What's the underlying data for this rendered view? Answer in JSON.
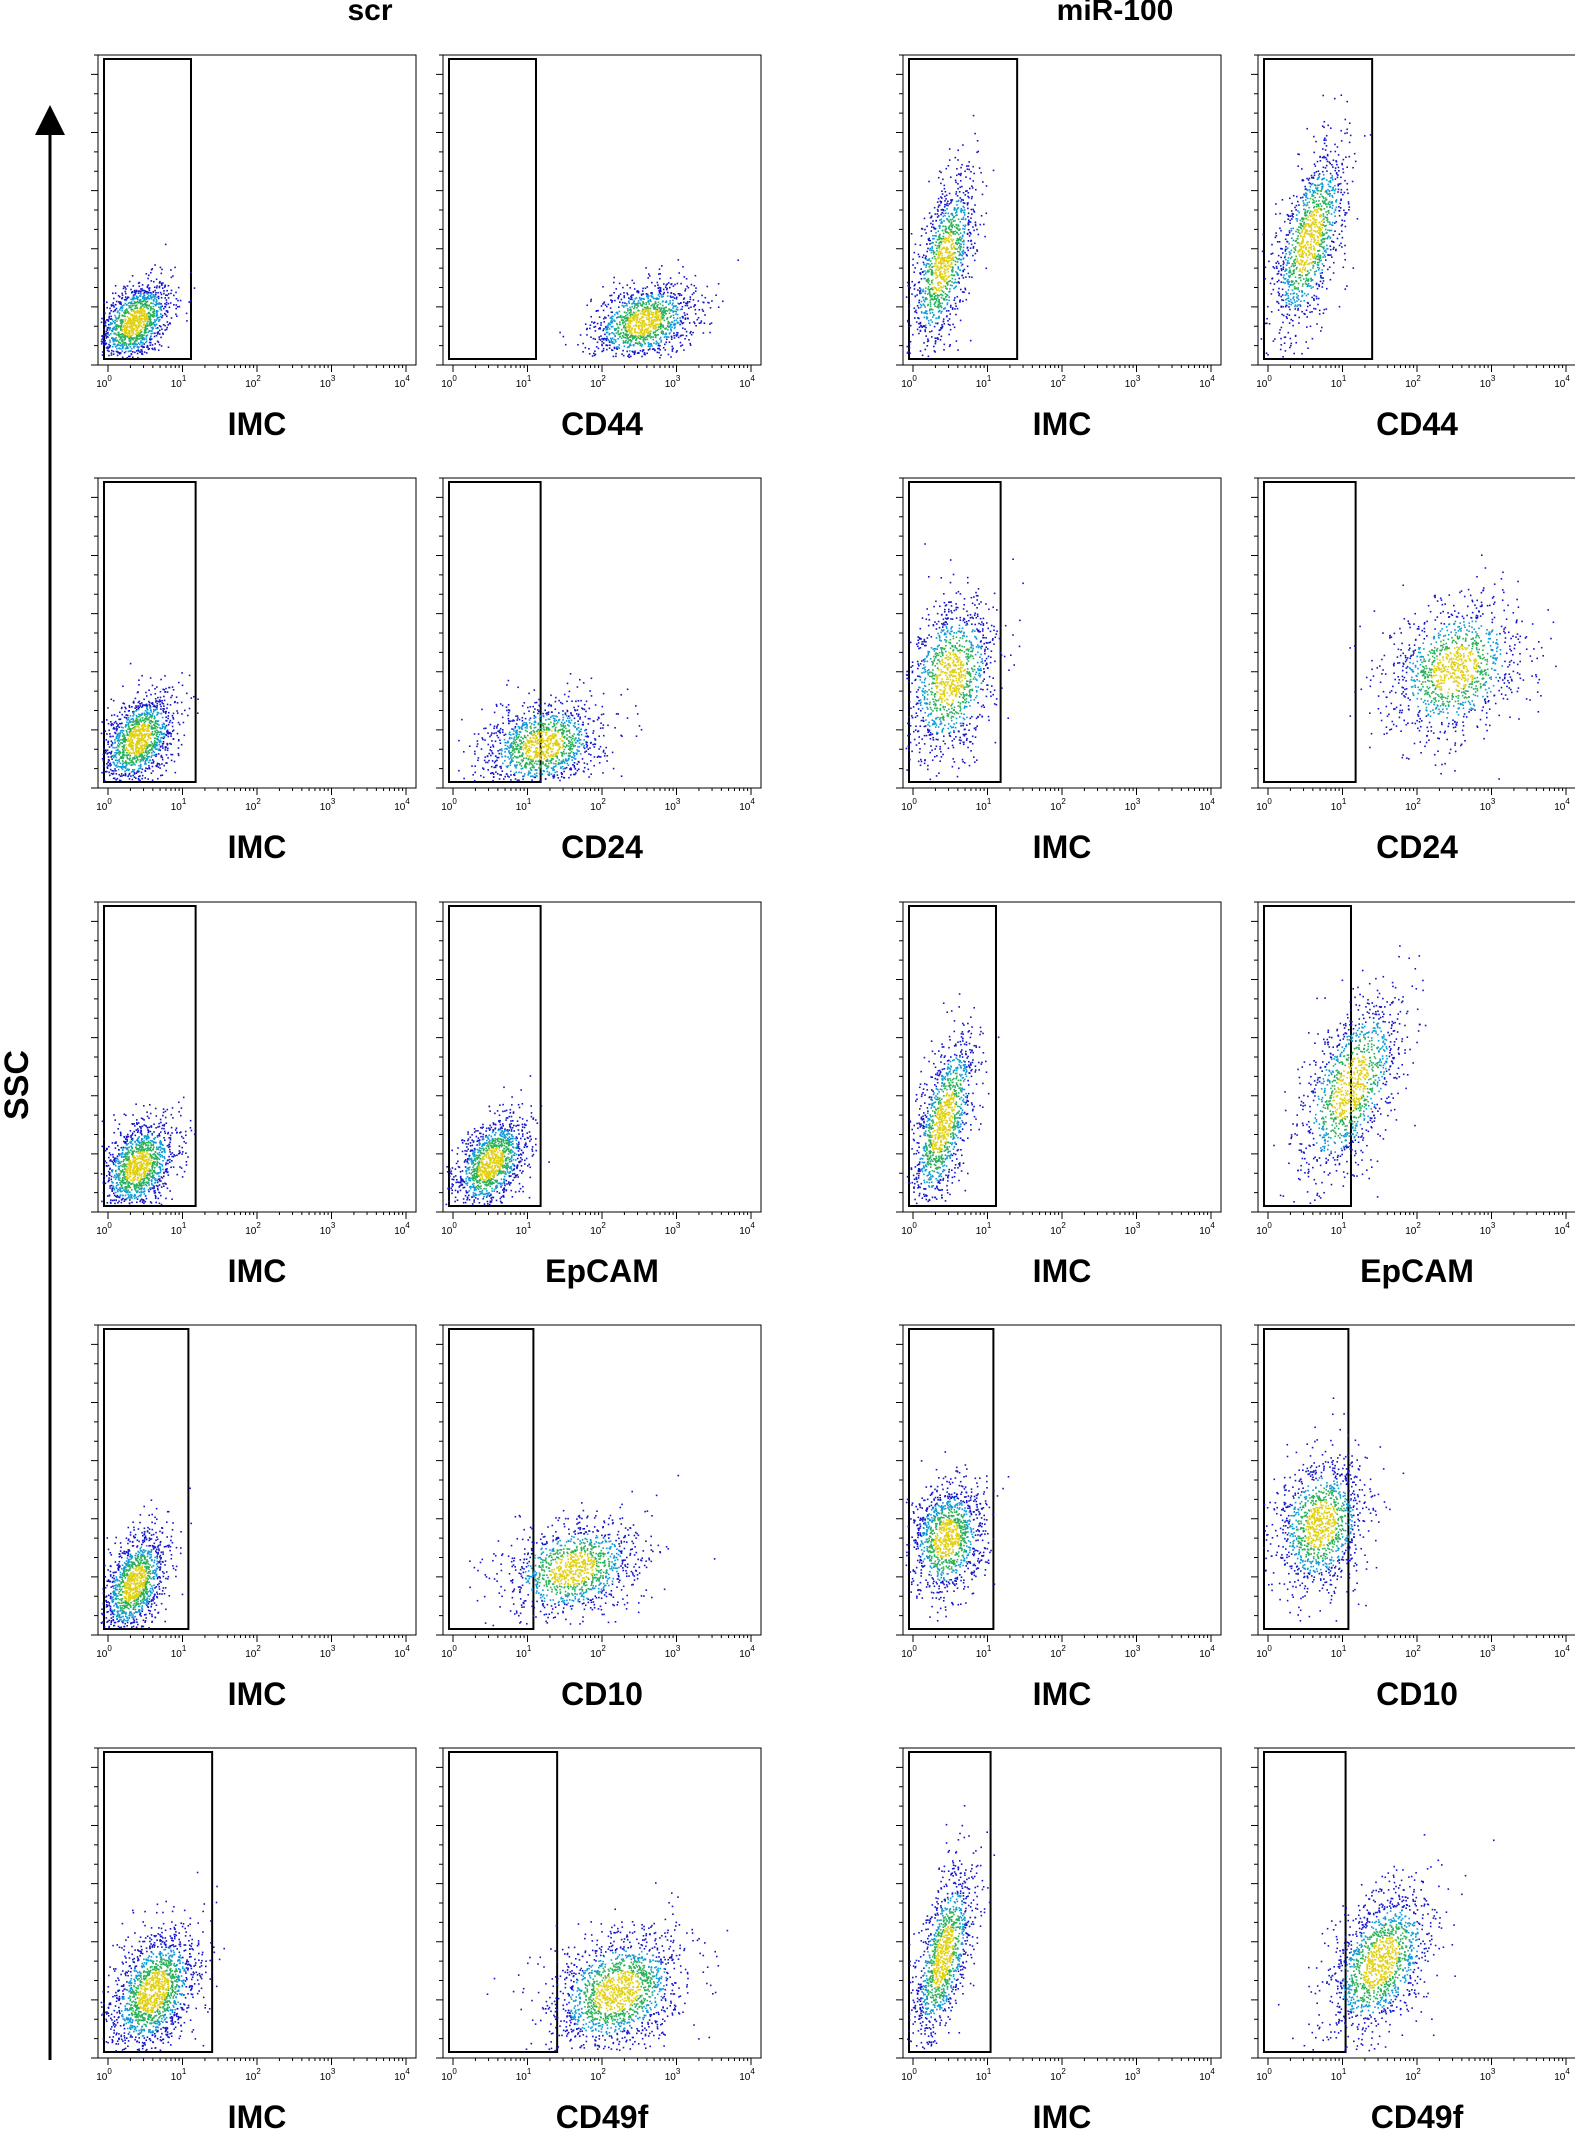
{
  "figure": {
    "group_labels": [
      "scr",
      "miR-100"
    ],
    "y_axis_label": "SSC",
    "colors": {
      "frame": "#000000",
      "gate": "#000000",
      "density_low": "#1414c8",
      "density_mid1": "#0e9bd6",
      "density_mid2": "#2bb05a",
      "density_high": "#e0d010"
    }
  },
  "chart_data": [
    {
      "type": "scatter",
      "panel": "scr-IMC-1",
      "group": "scr",
      "xlabel": "IMC",
      "ylabel": "SSC",
      "x_scale": "log",
      "xlim": [
        1,
        10000
      ],
      "x_ticks": [
        "10^0",
        "10^1",
        "10^2",
        "10^3",
        "10^4"
      ],
      "gate_x_max": 13,
      "population": {
        "center_x_log": 0.35,
        "spread_x_log": 0.25,
        "center_y": 0.12,
        "spread_y": 0.08,
        "tilt": 0.35,
        "n": 1300
      }
    },
    {
      "type": "scatter",
      "panel": "scr-CD44",
      "group": "scr",
      "xlabel": "CD44",
      "ylabel": "SSC",
      "x_scale": "log",
      "xlim": [
        1,
        10000
      ],
      "x_ticks": [
        "10^0",
        "10^1",
        "10^2",
        "10^3",
        "10^4"
      ],
      "gate_x_max": 13,
      "population": {
        "center_x_log": 2.55,
        "spread_x_log": 0.35,
        "center_y": 0.12,
        "spread_y": 0.08,
        "tilt": 0.25,
        "n": 1300
      }
    },
    {
      "type": "scatter",
      "panel": "mir-IMC-1",
      "group": "miR-100",
      "xlabel": "IMC",
      "ylabel": "SSC",
      "x_scale": "log",
      "xlim": [
        1,
        10000
      ],
      "x_ticks": [
        "10^0",
        "10^1",
        "10^2",
        "10^3",
        "10^4"
      ],
      "gate_x_max": 25,
      "population": {
        "center_x_log": 0.4,
        "spread_x_log": 0.22,
        "center_y": 0.32,
        "spread_y": 0.15,
        "tilt": 0.6,
        "n": 1200
      }
    },
    {
      "type": "scatter",
      "panel": "mir-CD44",
      "group": "miR-100",
      "xlabel": "CD44",
      "ylabel": "SSC",
      "x_scale": "log",
      "xlim": [
        1,
        10000
      ],
      "x_ticks": [
        "10^0",
        "10^1",
        "10^2",
        "10^3",
        "10^4"
      ],
      "gate_x_max": 25,
      "population": {
        "center_x_log": 0.55,
        "spread_x_log": 0.25,
        "center_y": 0.4,
        "spread_y": 0.16,
        "tilt": 0.6,
        "n": 1200
      }
    },
    {
      "type": "scatter",
      "panel": "scr-IMC-2",
      "group": "scr",
      "xlabel": "IMC",
      "ylabel": "SSC",
      "x_scale": "log",
      "xlim": [
        1,
        10000
      ],
      "x_ticks": [
        "10^0",
        "10^1",
        "10^2",
        "10^3",
        "10^4"
      ],
      "gate_x_max": 15,
      "population": {
        "center_x_log": 0.4,
        "spread_x_log": 0.25,
        "center_y": 0.14,
        "spread_y": 0.09,
        "tilt": 0.35,
        "n": 1300
      }
    },
    {
      "type": "scatter",
      "panel": "scr-CD24",
      "group": "scr",
      "xlabel": "CD24",
      "ylabel": "SSC",
      "x_scale": "log",
      "xlim": [
        1,
        10000
      ],
      "x_ticks": [
        "10^0",
        "10^1",
        "10^2",
        "10^3",
        "10^4"
      ],
      "gate_x_max": 15,
      "population": {
        "center_x_log": 1.2,
        "spread_x_log": 0.4,
        "center_y": 0.12,
        "spread_y": 0.09,
        "tilt": 0.2,
        "n": 1300
      }
    },
    {
      "type": "scatter",
      "panel": "mir-IMC-2",
      "group": "miR-100",
      "xlabel": "IMC",
      "ylabel": "SSC",
      "x_scale": "log",
      "xlim": [
        1,
        10000
      ],
      "x_ticks": [
        "10^0",
        "10^1",
        "10^2",
        "10^3",
        "10^4"
      ],
      "gate_x_max": 15,
      "population": {
        "center_x_log": 0.5,
        "spread_x_log": 0.3,
        "center_y": 0.35,
        "spread_y": 0.16,
        "tilt": 0.2,
        "n": 1200
      }
    },
    {
      "type": "scatter",
      "panel": "mir-CD24",
      "group": "miR-100",
      "xlabel": "CD24",
      "ylabel": "SSC",
      "x_scale": "log",
      "xlim": [
        1,
        10000
      ],
      "x_ticks": [
        "10^0",
        "10^1",
        "10^2",
        "10^3",
        "10^4"
      ],
      "gate_x_max": 15,
      "population": {
        "center_x_log": 2.5,
        "spread_x_log": 0.45,
        "center_y": 0.38,
        "spread_y": 0.14,
        "tilt": 0.2,
        "n": 1200
      }
    },
    {
      "type": "scatter",
      "panel": "scr-IMC-3",
      "group": "scr",
      "xlabel": "IMC",
      "ylabel": "SSC",
      "x_scale": "log",
      "xlim": [
        1,
        10000
      ],
      "x_ticks": [
        "10^0",
        "10^1",
        "10^2",
        "10^3",
        "10^4"
      ],
      "gate_x_max": 15,
      "population": {
        "center_x_log": 0.4,
        "spread_x_log": 0.25,
        "center_y": 0.13,
        "spread_y": 0.09,
        "tilt": 0.3,
        "n": 1300
      }
    },
    {
      "type": "scatter",
      "panel": "scr-EpCAM",
      "group": "scr",
      "xlabel": "EpCAM",
      "ylabel": "SSC",
      "x_scale": "log",
      "xlim": [
        1,
        10000
      ],
      "x_ticks": [
        "10^0",
        "10^1",
        "10^2",
        "10^3",
        "10^4"
      ],
      "gate_x_max": 15,
      "population": {
        "center_x_log": 0.5,
        "spread_x_log": 0.25,
        "center_y": 0.14,
        "spread_y": 0.09,
        "tilt": 0.4,
        "n": 1300
      }
    },
    {
      "type": "scatter",
      "panel": "mir-IMC-3",
      "group": "miR-100",
      "xlabel": "IMC",
      "ylabel": "SSC",
      "x_scale": "log",
      "xlim": [
        1,
        10000
      ],
      "x_ticks": [
        "10^0",
        "10^1",
        "10^2",
        "10^3",
        "10^4"
      ],
      "gate_x_max": 13,
      "population": {
        "center_x_log": 0.4,
        "spread_x_log": 0.22,
        "center_y": 0.28,
        "spread_y": 0.15,
        "tilt": 0.65,
        "n": 1200
      }
    },
    {
      "type": "scatter",
      "panel": "mir-EpCAM",
      "group": "miR-100",
      "xlabel": "EpCAM",
      "ylabel": "SSC",
      "x_scale": "log",
      "xlim": [
        1,
        10000
      ],
      "x_ticks": [
        "10^0",
        "10^1",
        "10^2",
        "10^3",
        "10^4"
      ],
      "gate_x_max": 13,
      "population": {
        "center_x_log": 1.1,
        "spread_x_log": 0.35,
        "center_y": 0.4,
        "spread_y": 0.16,
        "tilt": 0.55,
        "n": 1200
      }
    },
    {
      "type": "scatter",
      "panel": "scr-IMC-4",
      "group": "scr",
      "xlabel": "IMC",
      "ylabel": "SSC",
      "x_scale": "log",
      "xlim": [
        1,
        10000
      ],
      "x_ticks": [
        "10^0",
        "10^1",
        "10^2",
        "10^3",
        "10^4"
      ],
      "gate_x_max": 12,
      "population": {
        "center_x_log": 0.35,
        "spread_x_log": 0.22,
        "center_y": 0.15,
        "spread_y": 0.1,
        "tilt": 0.4,
        "n": 1300
      }
    },
    {
      "type": "scatter",
      "panel": "scr-CD10",
      "group": "scr",
      "xlabel": "CD10",
      "ylabel": "SSC",
      "x_scale": "log",
      "xlim": [
        1,
        10000
      ],
      "x_ticks": [
        "10^0",
        "10^1",
        "10^2",
        "10^3",
        "10^4"
      ],
      "gate_x_max": 12,
      "population": {
        "center_x_log": 1.6,
        "spread_x_log": 0.45,
        "center_y": 0.2,
        "spread_y": 0.1,
        "tilt": 0.2,
        "n": 1200
      }
    },
    {
      "type": "scatter",
      "panel": "mir-IMC-4",
      "group": "miR-100",
      "xlabel": "IMC",
      "ylabel": "SSC",
      "x_scale": "log",
      "xlim": [
        1,
        10000
      ],
      "x_ticks": [
        "10^0",
        "10^1",
        "10^2",
        "10^3",
        "10^4"
      ],
      "gate_x_max": 12,
      "population": {
        "center_x_log": 0.45,
        "spread_x_log": 0.25,
        "center_y": 0.3,
        "spread_y": 0.12,
        "tilt": 0.1,
        "n": 1200
      }
    },
    {
      "type": "scatter",
      "panel": "mir-CD10",
      "group": "miR-100",
      "xlabel": "CD10",
      "ylabel": "SSC",
      "x_scale": "log",
      "xlim": [
        1,
        10000
      ],
      "x_ticks": [
        "10^0",
        "10^1",
        "10^2",
        "10^3",
        "10^4"
      ],
      "gate_x_max": 12,
      "population": {
        "center_x_log": 0.7,
        "spread_x_log": 0.3,
        "center_y": 0.35,
        "spread_y": 0.14,
        "tilt": 0.15,
        "n": 1200
      }
    },
    {
      "type": "scatter",
      "panel": "scr-IMC-5",
      "group": "scr",
      "xlabel": "IMC",
      "ylabel": "SSC",
      "x_scale": "log",
      "xlim": [
        1,
        10000
      ],
      "x_ticks": [
        "10^0",
        "10^1",
        "10^2",
        "10^3",
        "10^4"
      ],
      "gate_x_max": 25,
      "population": {
        "center_x_log": 0.6,
        "spread_x_log": 0.3,
        "center_y": 0.2,
        "spread_y": 0.12,
        "tilt": 0.35,
        "n": 1600
      }
    },
    {
      "type": "scatter",
      "panel": "scr-CD49f",
      "group": "scr",
      "xlabel": "CD49f",
      "ylabel": "SSC",
      "x_scale": "log",
      "xlim": [
        1,
        10000
      ],
      "x_ticks": [
        "10^0",
        "10^1",
        "10^2",
        "10^3",
        "10^4"
      ],
      "gate_x_max": 25,
      "population": {
        "center_x_log": 2.2,
        "spread_x_log": 0.45,
        "center_y": 0.2,
        "spread_y": 0.12,
        "tilt": 0.25,
        "n": 1600
      }
    },
    {
      "type": "scatter",
      "panel": "mir-IMC-5",
      "group": "miR-100",
      "xlabel": "IMC",
      "ylabel": "SSC",
      "x_scale": "log",
      "xlim": [
        1,
        10000
      ],
      "x_ticks": [
        "10^0",
        "10^1",
        "10^2",
        "10^3",
        "10^4"
      ],
      "gate_x_max": 11,
      "population": {
        "center_x_log": 0.4,
        "spread_x_log": 0.2,
        "center_y": 0.32,
        "spread_y": 0.15,
        "tilt": 0.6,
        "n": 1200
      }
    },
    {
      "type": "scatter",
      "panel": "mir-CD49f",
      "group": "miR-100",
      "xlabel": "CD49f",
      "ylabel": "SSC",
      "x_scale": "log",
      "xlim": [
        1,
        10000
      ],
      "x_ticks": [
        "10^0",
        "10^1",
        "10^2",
        "10^3",
        "10^4"
      ],
      "gate_x_max": 11,
      "population": {
        "center_x_log": 1.5,
        "spread_x_log": 0.35,
        "center_y": 0.3,
        "spread_y": 0.14,
        "tilt": 0.4,
        "n": 1400
      }
    }
  ]
}
